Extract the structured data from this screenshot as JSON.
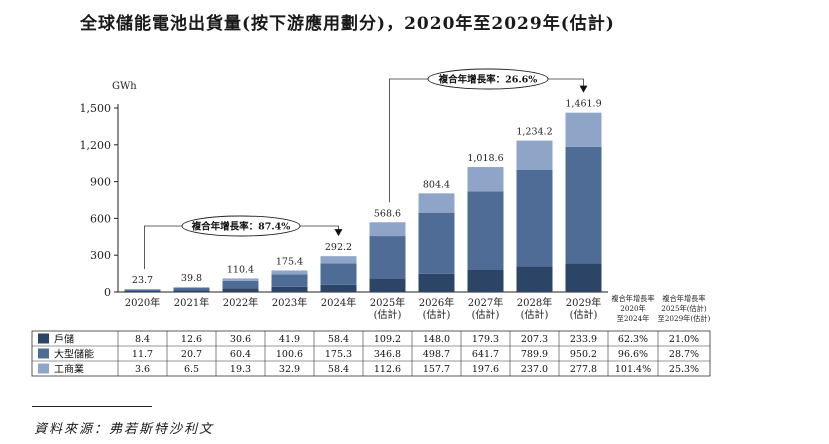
{
  "title": "全球儲能電池出貨量(按下游應用劃分)，2020年至2029年(估計)",
  "source": "資料來源：弗若斯特沙利文",
  "chart_data": {
    "type": "bar",
    "stacked": true,
    "unit": "GWh",
    "ylim": [
      0,
      1500
    ],
    "yticks": [
      "0",
      "300",
      "600",
      "900",
      "1,200",
      "1,500"
    ],
    "grid": false,
    "categories": [
      "2020年",
      "2021年",
      "2022年",
      "2023年",
      "2024年",
      "2025年\n(估計)",
      "2026年\n(估計)",
      "2027年\n(估計)",
      "2028年\n(估計)",
      "2029年\n(估計)"
    ],
    "series": [
      {
        "name": "戶儲",
        "color": "#2c4466",
        "values": [
          8.4,
          12.6,
          30.6,
          41.9,
          58.4,
          109.2,
          148.0,
          179.3,
          207.3,
          233.9
        ]
      },
      {
        "name": "大型儲能",
        "color": "#4f6c97",
        "values": [
          11.7,
          20.7,
          60.4,
          100.6,
          175.3,
          346.8,
          498.7,
          641.7,
          789.9,
          950.2
        ]
      },
      {
        "name": "工商業",
        "color": "#8fa5c8",
        "values": [
          3.6,
          6.5,
          19.3,
          32.9,
          58.4,
          112.6,
          157.7,
          197.6,
          237.0,
          277.8
        ]
      }
    ],
    "totals": [
      "23.7",
      "39.8",
      "110.4",
      "175.4",
      "292.2",
      "568.6",
      "804.4",
      "1,018.6",
      "1,234.2",
      "1,461.9"
    ],
    "table_rows": [
      {
        "name": "戶儲",
        "cells": [
          "8.4",
          "12.6",
          "30.6",
          "41.9",
          "58.4",
          "109.2",
          "148.0",
          "179.3",
          "207.3",
          "233.9",
          "62.3%",
          "21.0%"
        ]
      },
      {
        "name": "大型儲能",
        "cells": [
          "11.7",
          "20.7",
          "60.4",
          "100.6",
          "175.3",
          "346.8",
          "498.7",
          "641.7",
          "789.9",
          "950.2",
          "96.6%",
          "28.7%"
        ]
      },
      {
        "name": "工商業",
        "cells": [
          "3.6",
          "6.5",
          "19.3",
          "32.9",
          "58.4",
          "112.6",
          "157.7",
          "197.6",
          "237.0",
          "277.8",
          "101.4%",
          "25.3%"
        ]
      }
    ],
    "cagr_headers": [
      [
        "複合年增長率",
        "2020年",
        "至2024年"
      ],
      [
        "複合年增長率",
        "2025年(估計)",
        "至2029年(估計)"
      ]
    ],
    "annotations": [
      {
        "label": "複合年增長率：87.4%",
        "from": 0,
        "to": 4
      },
      {
        "label": "複合年增長率：26.6%",
        "from": 5,
        "to": 9
      }
    ]
  }
}
